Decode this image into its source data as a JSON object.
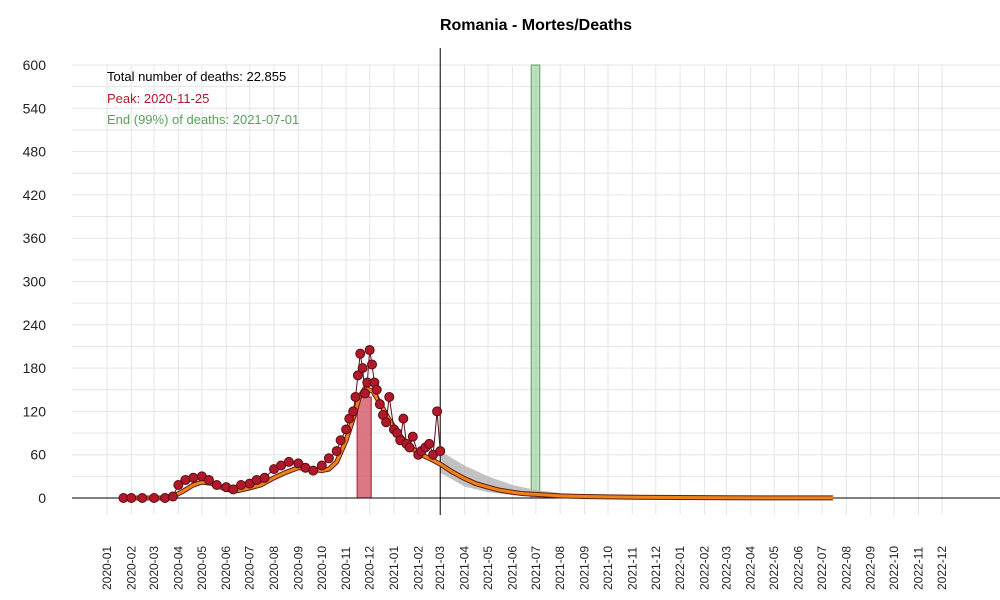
{
  "chart_data": {
    "type": "line",
    "title": "Romania - Mortes/Deaths",
    "xlabel": "",
    "ylabel": "",
    "x_ticks": [
      "2020-01",
      "2020-02",
      "2020-03",
      "2020-04",
      "2020-05",
      "2020-06",
      "2020-07",
      "2020-08",
      "2020-09",
      "2020-10",
      "2020-11",
      "2020-12",
      "2021-01",
      "2021-02",
      "2021-03",
      "2021-04",
      "2021-05",
      "2021-06",
      "2021-07",
      "2021-08",
      "2021-09",
      "2021-10",
      "2021-11",
      "2021-12",
      "2022-01",
      "2022-02",
      "2022-03",
      "2022-04",
      "2022-05",
      "2022-06",
      "2022-07",
      "2022-08",
      "2022-09",
      "2022-10",
      "2022-11",
      "2022-12"
    ],
    "y_ticks": [
      0,
      60,
      120,
      180,
      240,
      300,
      360,
      420,
      480,
      540,
      600
    ],
    "ylim": [
      0,
      600
    ],
    "grid": true,
    "annotations": {
      "total": "Total number of deaths: 22.855",
      "peak": "Peak: 2020-11-25",
      "end": "End (99%) of deaths: 2021-07-01"
    },
    "colors": {
      "points": "#b2182b",
      "points_stroke": "#5a0c12",
      "fit": "#e8841a",
      "fit_outline": "#6b1a12",
      "peak_band": "#d6606d",
      "end_band": "#8fc28f",
      "ci": "#b3b3b3"
    },
    "current_date_line": "2021-03-01",
    "peak_band": {
      "from": "2020-11-15",
      "to": "2020-12-03"
    },
    "end_band": {
      "from": "2021-06-25",
      "to": "2021-07-06"
    },
    "series": [
      {
        "kind": "observed",
        "x": [
          "2020-01-22",
          "2020-02-01",
          "2020-02-15",
          "2020-03-01",
          "2020-03-15",
          "2020-03-25",
          "2020-04-01",
          "2020-04-10",
          "2020-04-20",
          "2020-05-01",
          "2020-05-10",
          "2020-05-20",
          "2020-06-01",
          "2020-06-10",
          "2020-06-20",
          "2020-07-01",
          "2020-07-10",
          "2020-07-20",
          "2020-08-01",
          "2020-08-10",
          "2020-08-20",
          "2020-09-01",
          "2020-09-10",
          "2020-09-20",
          "2020-10-01",
          "2020-10-10",
          "2020-10-20",
          "2020-10-25",
          "2020-11-01",
          "2020-11-05",
          "2020-11-10",
          "2020-11-13",
          "2020-11-16",
          "2020-11-19",
          "2020-11-22",
          "2020-11-25",
          "2020-11-28",
          "2020-12-01",
          "2020-12-04",
          "2020-12-07",
          "2020-12-10",
          "2020-12-14",
          "2020-12-18",
          "2020-12-22",
          "2020-12-26",
          "2021-01-01",
          "2021-01-05",
          "2021-01-09",
          "2021-01-13",
          "2021-01-17",
          "2021-01-21",
          "2021-01-25",
          "2021-02-01",
          "2021-02-05",
          "2021-02-10",
          "2021-02-15",
          "2021-02-20",
          "2021-02-25",
          "2021-03-01"
        ],
        "values": [
          0,
          0,
          0,
          0,
          0,
          2,
          18,
          25,
          28,
          30,
          25,
          18,
          15,
          12,
          18,
          20,
          25,
          28,
          40,
          45,
          50,
          48,
          42,
          38,
          45,
          55,
          65,
          80,
          95,
          110,
          120,
          140,
          170,
          200,
          180,
          145,
          160,
          205,
          185,
          160,
          150,
          130,
          115,
          105,
          140,
          95,
          90,
          80,
          110,
          75,
          70,
          85,
          60,
          65,
          70,
          75,
          60,
          120,
          65
        ]
      },
      {
        "kind": "fit",
        "x": [
          "2020-01-22",
          "2020-03-10",
          "2020-03-25",
          "2020-04-08",
          "2020-04-20",
          "2020-05-01",
          "2020-05-15",
          "2020-06-01",
          "2020-06-15",
          "2020-07-01",
          "2020-07-15",
          "2020-08-01",
          "2020-08-15",
          "2020-09-01",
          "2020-09-15",
          "2020-10-01",
          "2020-10-10",
          "2020-10-20",
          "2020-11-01",
          "2020-11-10",
          "2020-11-18",
          "2020-11-25",
          "2020-12-05",
          "2020-12-15",
          "2020-12-25",
          "2021-01-05",
          "2021-01-15",
          "2021-01-25",
          "2021-02-05",
          "2021-02-15",
          "2021-03-01",
          "2021-03-15",
          "2021-04-01",
          "2021-04-15",
          "2021-05-01",
          "2021-05-15",
          "2021-06-01",
          "2021-06-15",
          "2021-07-01",
          "2021-08-01",
          "2021-09-01",
          "2021-10-01",
          "2021-12-01",
          "2022-03-01",
          "2022-07-15"
        ],
        "values": [
          0,
          0,
          2,
          10,
          18,
          22,
          20,
          12,
          10,
          14,
          18,
          28,
          35,
          42,
          40,
          38,
          40,
          50,
          80,
          110,
          140,
          152,
          148,
          130,
          110,
          92,
          78,
          68,
          60,
          55,
          47,
          37,
          27,
          20,
          15,
          11,
          8,
          6,
          5,
          3,
          2,
          1.5,
          0.8,
          0.3,
          0.1
        ]
      },
      {
        "kind": "ci_upper",
        "x": [
          "2021-03-01",
          "2021-04-01",
          "2021-05-01",
          "2021-06-01",
          "2021-07-01",
          "2021-08-01",
          "2021-09-01",
          "2021-10-01",
          "2021-11-01",
          "2022-01-01"
        ],
        "values": [
          65,
          45,
          30,
          18,
          11,
          7,
          4,
          2,
          1,
          0
        ]
      },
      {
        "kind": "ci_lower",
        "x": [
          "2021-03-01",
          "2021-04-01",
          "2021-05-01",
          "2021-06-01",
          "2021-07-01",
          "2021-08-01",
          "2021-09-01",
          "2021-10-01",
          "2021-11-01",
          "2022-01-01"
        ],
        "values": [
          35,
          16,
          8,
          4,
          2,
          1,
          0,
          0,
          0,
          0
        ]
      }
    ]
  }
}
